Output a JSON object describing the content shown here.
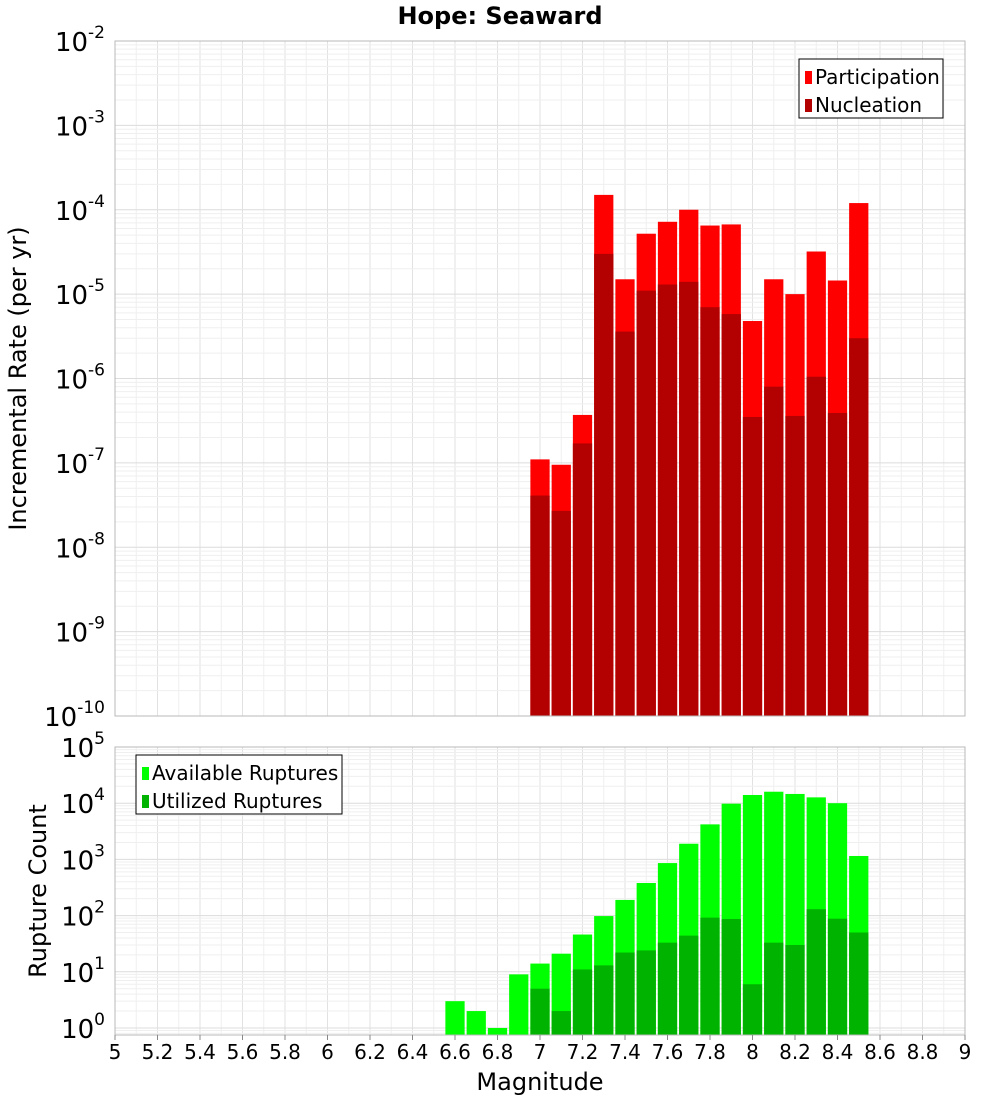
{
  "chart_data": [
    {
      "type": "bar",
      "panel": "top",
      "title": "Hope: Seaward",
      "ylabel": "Incremental Rate (per yr)",
      "yscale": "log",
      "ylim": [
        1e-10,
        0.01
      ],
      "xlim": [
        5,
        9
      ],
      "grid": true,
      "legend_position": "top-right",
      "y_ticks": [
        {
          "base": "10",
          "exp": "-2",
          "value": 0.01
        },
        {
          "base": "10",
          "exp": "-3",
          "value": 0.001
        },
        {
          "base": "10",
          "exp": "-4",
          "value": 0.0001
        },
        {
          "base": "10",
          "exp": "-5",
          "value": 1e-05
        },
        {
          "base": "10",
          "exp": "-6",
          "value": 1e-06
        },
        {
          "base": "10",
          "exp": "-7",
          "value": 1e-07
        },
        {
          "base": "10",
          "exp": "-8",
          "value": 1e-08
        },
        {
          "base": "10",
          "exp": "-9",
          "value": 1e-09
        },
        {
          "base": "10",
          "exp": "-10",
          "value": 1e-10
        }
      ],
      "x": [
        7.0,
        7.1,
        7.2,
        7.3,
        7.4,
        7.5,
        7.6,
        7.7,
        7.8,
        7.9,
        8.0,
        8.1,
        8.2,
        8.3,
        8.4,
        8.5
      ],
      "series": [
        {
          "name": "Participation",
          "color": "#ff0000",
          "values": [
            1.1e-07,
            9.5e-08,
            3.7e-07,
            0.00015,
            1.5e-05,
            5.2e-05,
            7.2e-05,
            0.0001,
            6.5e-05,
            6.7e-05,
            4.8e-06,
            1.5e-05,
            1e-05,
            3.2e-05,
            1.45e-05,
            0.00012
          ]
        },
        {
          "name": "Nucleation",
          "color": "#b30000",
          "values": [
            4.1e-08,
            2.7e-08,
            1.7e-07,
            3e-05,
            3.6e-06,
            1.1e-05,
            1.3e-05,
            1.4e-05,
            7e-06,
            5.8e-06,
            3.5e-07,
            8e-07,
            3.6e-07,
            1.05e-06,
            3.9e-07,
            3e-06
          ]
        }
      ]
    },
    {
      "type": "bar",
      "panel": "bottom",
      "xlabel": "Magnitude",
      "ylabel": "Rupture Count",
      "yscale": "log",
      "ylim": [
        0.75,
        100000.0
      ],
      "xlim": [
        5,
        9
      ],
      "grid": true,
      "legend_position": "top-left",
      "y_ticks": [
        {
          "base": "10",
          "exp": "5",
          "value": 100000.0
        },
        {
          "base": "10",
          "exp": "4",
          "value": 10000.0
        },
        {
          "base": "10",
          "exp": "3",
          "value": 1000.0
        },
        {
          "base": "10",
          "exp": "2",
          "value": 100.0
        },
        {
          "base": "10",
          "exp": "1",
          "value": 10.0
        },
        {
          "base": "10",
          "exp": "0",
          "value": 1
        }
      ],
      "x_ticks": [
        "5",
        "5.2",
        "5.4",
        "5.6",
        "5.8",
        "6",
        "6.2",
        "6.4",
        "6.6",
        "6.8",
        "7",
        "7.2",
        "7.4",
        "7.6",
        "7.8",
        "8",
        "8.2",
        "8.4",
        "8.6",
        "8.8",
        "9"
      ],
      "x": [
        6.6,
        6.7,
        6.8,
        6.9,
        7.0,
        7.1,
        7.2,
        7.3,
        7.4,
        7.5,
        7.6,
        7.7,
        7.8,
        7.9,
        8.0,
        8.1,
        8.2,
        8.3,
        8.4,
        8.5
      ],
      "series": [
        {
          "name": "Available Ruptures",
          "color": "#00ff00",
          "values": [
            3,
            2,
            1,
            9,
            14,
            21,
            46,
            98,
            190,
            380,
            860,
            1900,
            4200,
            9800,
            14000,
            16000,
            14600,
            12700,
            10000,
            1150
          ]
        },
        {
          "name": "Utilized Ruptures",
          "color": "#00b300",
          "values": [
            0,
            0,
            0,
            0,
            5,
            2,
            11,
            13,
            22,
            24,
            33,
            44,
            92,
            87,
            6,
            33,
            30,
            130,
            88,
            50
          ]
        }
      ]
    }
  ]
}
